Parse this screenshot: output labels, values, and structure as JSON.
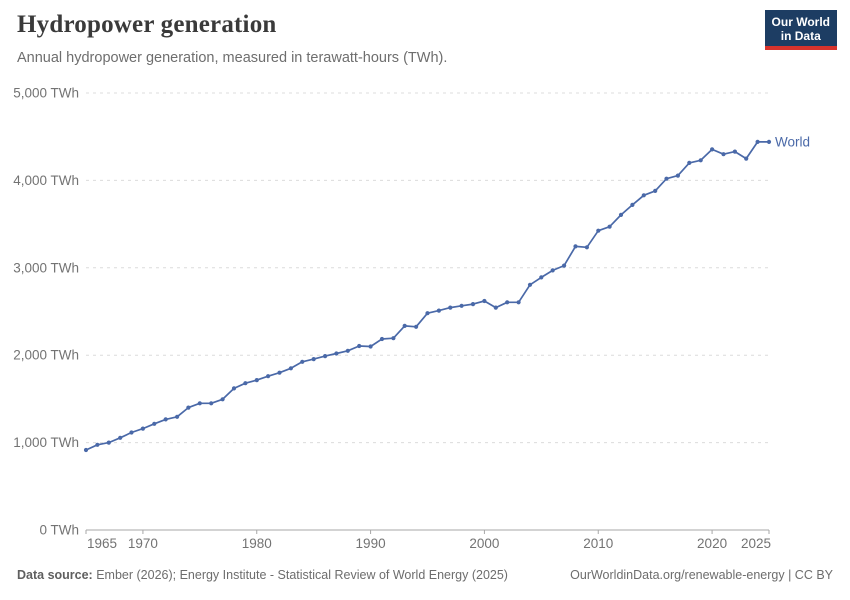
{
  "header": {
    "title": "Hydropower generation",
    "subtitle": "Annual hydropower generation, measured in terawatt-hours (TWh).",
    "logo": {
      "line1": "Our World",
      "line2": "in Data",
      "bg_color": "#1d3d63",
      "accent_color": "#d7332c"
    }
  },
  "chart_data": {
    "type": "line",
    "title": "Hydropower generation",
    "xlabel": "",
    "ylabel": "TWh",
    "xlim": [
      1965,
      2025
    ],
    "ylim": [
      0,
      5000
    ],
    "grid": "horizontal-dashed",
    "legend_position": "line-end",
    "line_color": "#4a69a8",
    "grid_color": "#dcdcdc",
    "axis_color": "#a7a7a7",
    "tick_label_color": "#737373",
    "x": [
      1965,
      1966,
      1967,
      1968,
      1969,
      1970,
      1971,
      1972,
      1973,
      1974,
      1975,
      1976,
      1977,
      1978,
      1979,
      1980,
      1981,
      1982,
      1983,
      1984,
      1985,
      1986,
      1987,
      1988,
      1989,
      1990,
      1991,
      1992,
      1993,
      1994,
      1995,
      1996,
      1997,
      1998,
      1999,
      2000,
      2001,
      2002,
      2003,
      2004,
      2005,
      2006,
      2007,
      2008,
      2009,
      2010,
      2011,
      2012,
      2013,
      2014,
      2015,
      2016,
      2017,
      2018,
      2019,
      2020,
      2021,
      2022,
      2023,
      2024,
      2025
    ],
    "series": [
      {
        "name": "World",
        "color": "#4a69a8",
        "values": [
          915,
          975,
          1000,
          1055,
          1115,
          1160,
          1215,
          1265,
          1295,
          1400,
          1450,
          1450,
          1495,
          1620,
          1680,
          1715,
          1760,
          1800,
          1850,
          1925,
          1955,
          1990,
          2020,
          2050,
          2105,
          2100,
          2185,
          2195,
          2335,
          2325,
          2480,
          2510,
          2545,
          2565,
          2585,
          2620,
          2545,
          2605,
          2605,
          2805,
          2890,
          2970,
          3025,
          3245,
          3235,
          3425,
          3470,
          3605,
          3720,
          3830,
          3880,
          4020,
          4055,
          4200,
          4230,
          4355,
          4300,
          4330,
          4250,
          4440,
          4440
        ]
      }
    ],
    "yticks": [
      {
        "value": 0,
        "label": "0 TWh"
      },
      {
        "value": 1000,
        "label": "1,000 TWh"
      },
      {
        "value": 2000,
        "label": "2,000 TWh"
      },
      {
        "value": 3000,
        "label": "3,000 TWh"
      },
      {
        "value": 4000,
        "label": "4,000 TWh"
      },
      {
        "value": 5000,
        "label": "5,000 TWh"
      }
    ],
    "xticks": [
      {
        "value": 1965,
        "label": "1965"
      },
      {
        "value": 1970,
        "label": "1970"
      },
      {
        "value": 1980,
        "label": "1980"
      },
      {
        "value": 1990,
        "label": "1990"
      },
      {
        "value": 2000,
        "label": "2000"
      },
      {
        "value": 2010,
        "label": "2010"
      },
      {
        "value": 2020,
        "label": "2020"
      },
      {
        "value": 2025,
        "label": "2025"
      }
    ]
  },
  "footer": {
    "source_label": "Data source:",
    "source_text": " Ember (2026); Energy Institute - Statistical Review of World Energy (2025)",
    "link_text": "OurWorldinData.org/renewable-energy | CC BY"
  }
}
